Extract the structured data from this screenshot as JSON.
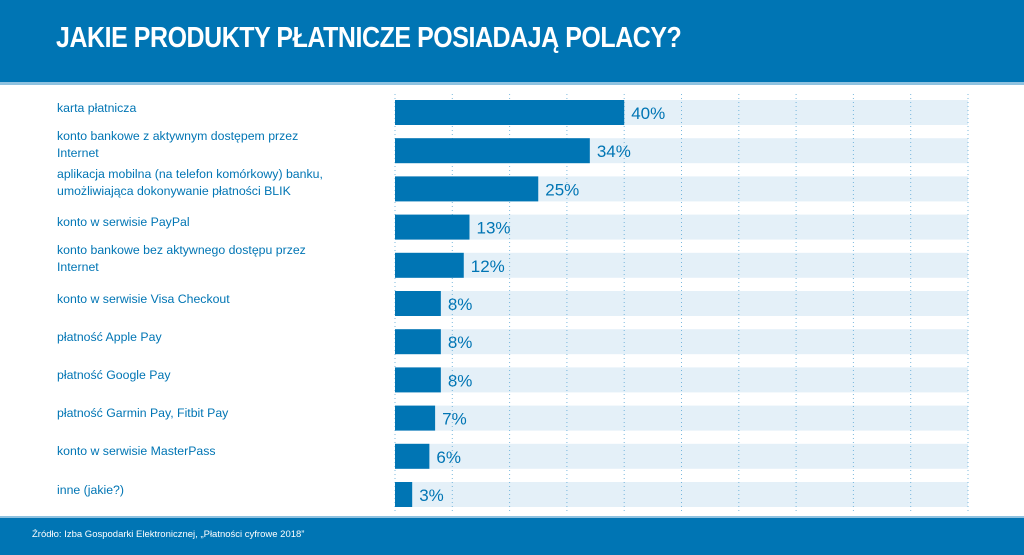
{
  "header": {
    "title": "JAKIE PRODUKTY PŁATNICZE POSIADAJĄ POLACY?"
  },
  "footer": {
    "source": "Źródło: Izba Gospodarki Elektronicznej, „Płatności cyfrowe 2018”"
  },
  "colors": {
    "brand": "#0075b4",
    "band": "#e4f0f8",
    "grid": "#5ba8d6",
    "white": "#ffffff"
  },
  "chart_data": {
    "type": "bar",
    "orientation": "horizontal",
    "title": "JAKIE PRODUKTY PŁATNICZE POSIADAJĄ POLACY?",
    "xlim": [
      0,
      100
    ],
    "grid": true,
    "grid_step": 10,
    "categories": [
      "karta płatnicza",
      "konto bankowe z aktywnym dostępem przez Internet",
      "aplikacja mobilna (na telefon komórkowy) banku, umożliwiająca dokonywanie płatności BLIK",
      "konto w serwisie PayPal",
      "konto bankowe bez aktywnego dostępu przez Internet",
      "konto w serwisie Visa Checkout",
      "płatność Apple Pay",
      "płatność Google Pay",
      "płatność Garmin Pay, Fitbit Pay",
      "konto w serwisie MasterPass",
      "inne (jakie?)"
    ],
    "label_lines": [
      [
        "karta płatnicza"
      ],
      [
        "konto bankowe z aktywnym dostępem przez",
        "Internet"
      ],
      [
        "aplikacja mobilna (na telefon komórkowy) banku,",
        "umożliwiająca dokonywanie płatności BLIK"
      ],
      [
        "konto w serwisie PayPal"
      ],
      [
        "konto bankowe bez aktywnego dostępu przez",
        "Internet"
      ],
      [
        "konto w serwisie Visa Checkout"
      ],
      [
        "płatność Apple Pay"
      ],
      [
        "płatność Google Pay"
      ],
      [
        "płatność Garmin Pay, Fitbit Pay"
      ],
      [
        "konto w serwisie MasterPass"
      ],
      [
        "inne (jakie?)"
      ]
    ],
    "values": [
      40,
      34,
      25,
      13,
      12,
      8,
      8,
      8,
      7,
      6,
      3
    ],
    "data_labels": [
      "40%",
      "34%",
      "25%",
      "13%",
      "12%",
      "8%",
      "8%",
      "8%",
      "7%",
      "6%",
      "3%"
    ]
  }
}
